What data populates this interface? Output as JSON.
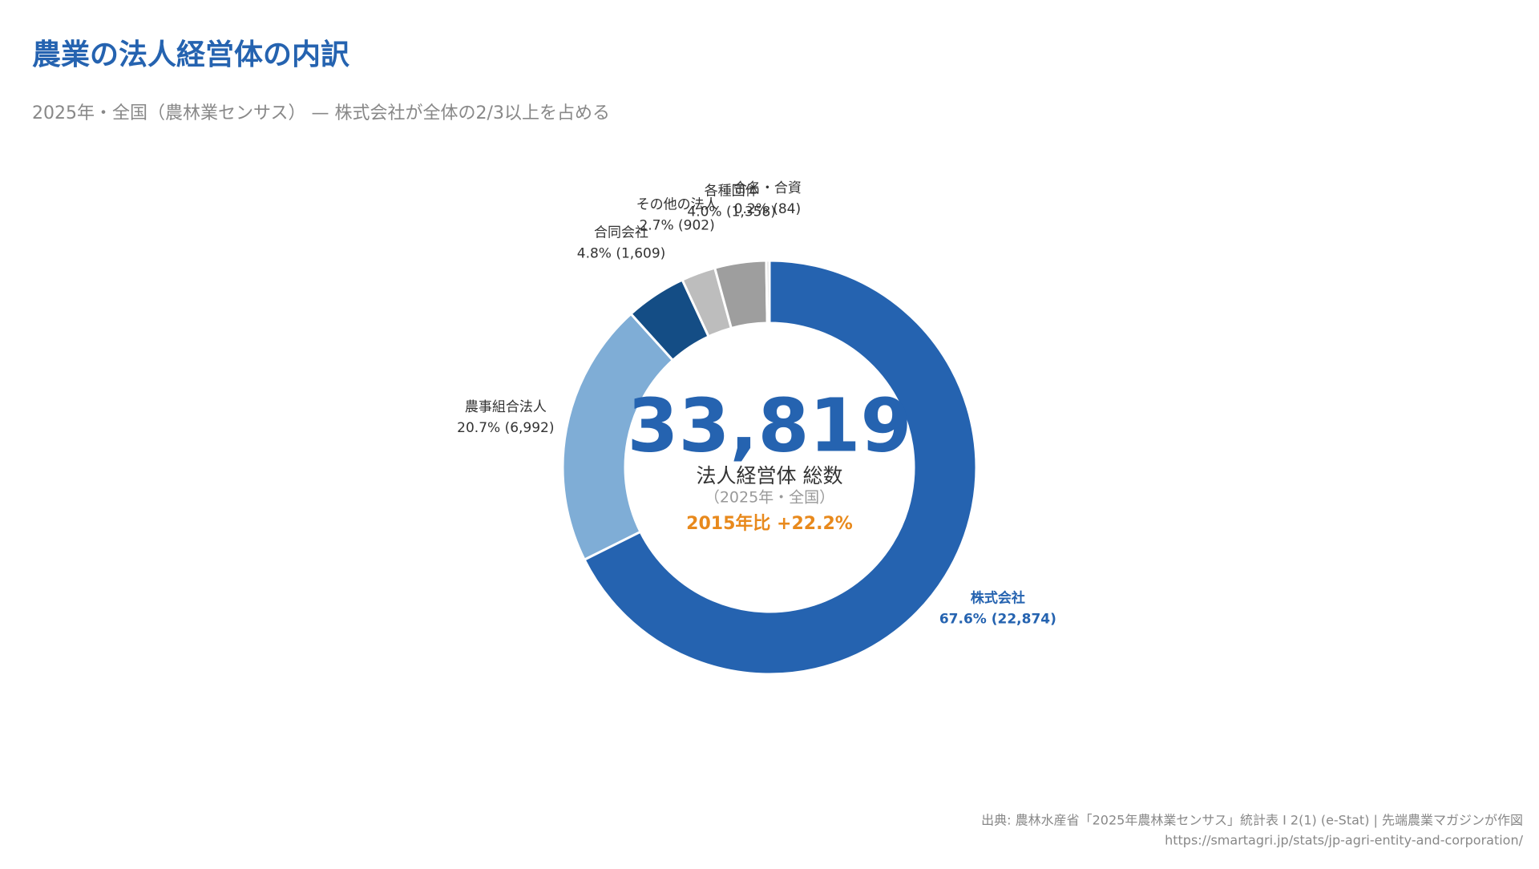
{
  "chart_data": {
    "type": "donut",
    "title": "農業の法人経営体の内訳",
    "subtitle": "2025年・全国（農林業センサス） — 株式会社が全体の2/3以上を占める",
    "categories": [
      "株式会社",
      "農事組合法人",
      "合同会社",
      "その他の法人",
      "各種団体",
      "合名・合資"
    ],
    "values": [
      22874,
      6992,
      1609,
      902,
      1358,
      84
    ],
    "value_labels": [
      "67.6% (22,874)",
      "20.7% (6,992)",
      "4.8% (1,609)",
      "2.7% (902)",
      "4.0% (1,358)",
      "0.2% (84)"
    ],
    "colors": [
      "#2563b0",
      "#7fadd6",
      "#144d85",
      "#bdbdbd",
      "#9e9e9e",
      "#d4d4d4"
    ],
    "center_value": "33,819",
    "center_label": "法人経営体 総数",
    "center_note": "（2025年・全国）",
    "center_change": "2015年比 +22.2%",
    "source": "出典: 農林水産省「2025年農林業センサス」統計表 I 2(1) (e-Stat) | 先端農業マガジンが作図",
    "url": "https://smartagri.jp/stats/jp-agri-entity-and-corporation/"
  }
}
